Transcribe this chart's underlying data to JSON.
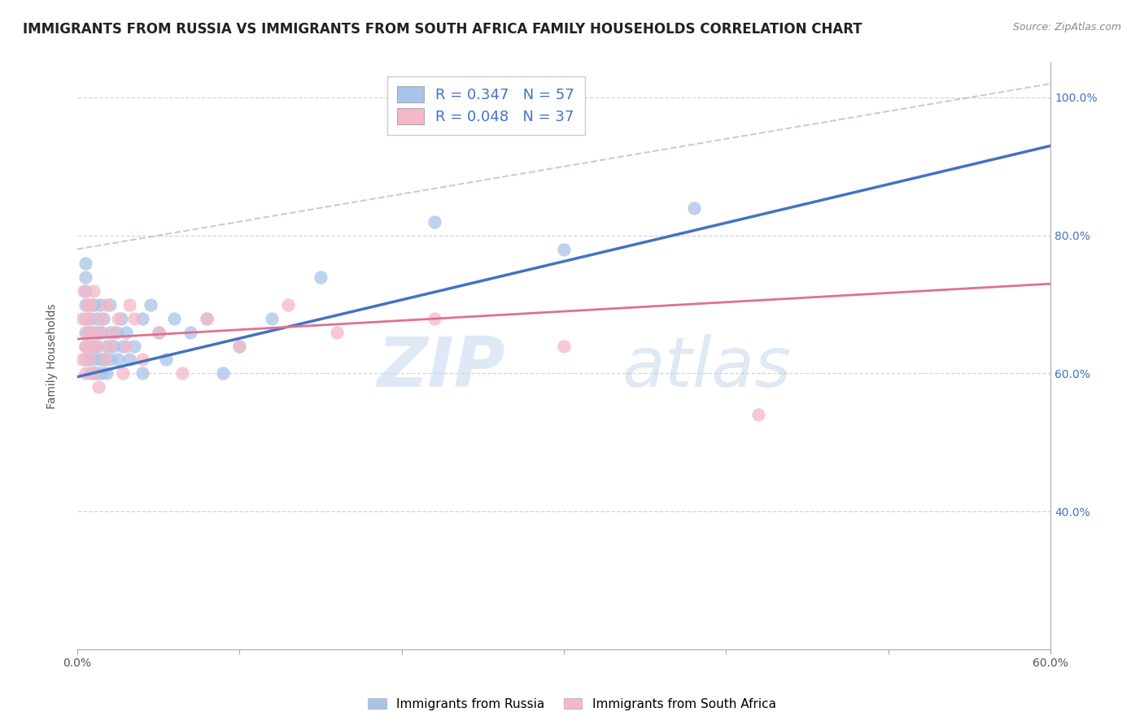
{
  "title": "IMMIGRANTS FROM RUSSIA VS IMMIGRANTS FROM SOUTH AFRICA FAMILY HOUSEHOLDS CORRELATION CHART",
  "source": "Source: ZipAtlas.com",
  "ylabel": "Family Households",
  "xlim": [
    0.0,
    0.6
  ],
  "ylim": [
    0.2,
    1.05
  ],
  "blue_color": "#a8c4e8",
  "pink_color": "#f5b8c8",
  "trendline_blue": "#4472c4",
  "trendline_pink": "#e07090",
  "dashed_line_color": "#aaaaaa",
  "watermark_zip": "ZIP",
  "watermark_atlas": "atlas",
  "background_color": "#ffffff",
  "grid_color": "#cccccc",
  "title_fontsize": 12,
  "axis_fontsize": 10,
  "tick_fontsize": 10,
  "russia_x": [
    0.005,
    0.005,
    0.005,
    0.005,
    0.005,
    0.005,
    0.005,
    0.005,
    0.007,
    0.007,
    0.007,
    0.008,
    0.008,
    0.008,
    0.01,
    0.01,
    0.01,
    0.01,
    0.01,
    0.012,
    0.012,
    0.012,
    0.013,
    0.014,
    0.014,
    0.015,
    0.015,
    0.016,
    0.016,
    0.018,
    0.018,
    0.02,
    0.02,
    0.02,
    0.022,
    0.024,
    0.025,
    0.027,
    0.028,
    0.03,
    0.032,
    0.035,
    0.04,
    0.04,
    0.045,
    0.05,
    0.055,
    0.06,
    0.07,
    0.08,
    0.09,
    0.1,
    0.12,
    0.15,
    0.22,
    0.3,
    0.38
  ],
  "russia_y": [
    0.62,
    0.64,
    0.66,
    0.68,
    0.7,
    0.72,
    0.74,
    0.76,
    0.62,
    0.66,
    0.7,
    0.6,
    0.64,
    0.68,
    0.6,
    0.62,
    0.64,
    0.66,
    0.7,
    0.6,
    0.64,
    0.68,
    0.66,
    0.62,
    0.7,
    0.6,
    0.66,
    0.62,
    0.68,
    0.6,
    0.64,
    0.62,
    0.66,
    0.7,
    0.64,
    0.66,
    0.62,
    0.68,
    0.64,
    0.66,
    0.62,
    0.64,
    0.6,
    0.68,
    0.7,
    0.66,
    0.62,
    0.68,
    0.66,
    0.68,
    0.6,
    0.64,
    0.68,
    0.74,
    0.82,
    0.78,
    0.84
  ],
  "sa_x": [
    0.003,
    0.003,
    0.004,
    0.005,
    0.005,
    0.006,
    0.006,
    0.007,
    0.007,
    0.008,
    0.008,
    0.009,
    0.01,
    0.01,
    0.012,
    0.013,
    0.014,
    0.015,
    0.017,
    0.018,
    0.02,
    0.022,
    0.025,
    0.028,
    0.03,
    0.032,
    0.035,
    0.04,
    0.05,
    0.065,
    0.08,
    0.1,
    0.13,
    0.16,
    0.22,
    0.3,
    0.42
  ],
  "sa_y": [
    0.62,
    0.68,
    0.72,
    0.6,
    0.64,
    0.66,
    0.7,
    0.62,
    0.68,
    0.64,
    0.7,
    0.66,
    0.6,
    0.72,
    0.64,
    0.58,
    0.66,
    0.68,
    0.62,
    0.7,
    0.64,
    0.66,
    0.68,
    0.6,
    0.64,
    0.7,
    0.68,
    0.62,
    0.66,
    0.6,
    0.68,
    0.64,
    0.7,
    0.66,
    0.68,
    0.64,
    0.54
  ]
}
